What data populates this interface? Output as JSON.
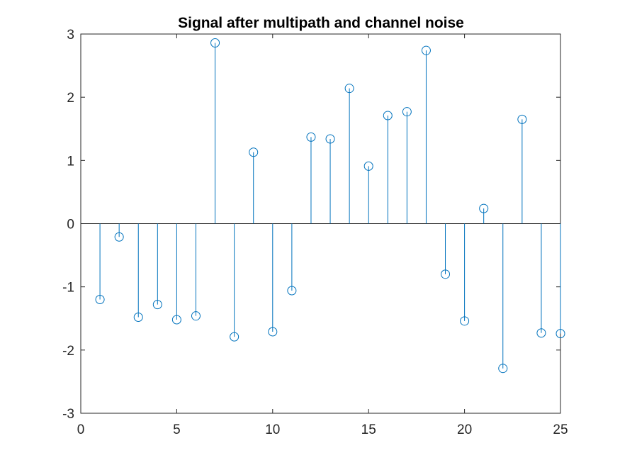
{
  "chart_data": {
    "type": "stem",
    "title": "Signal after multipath and channel noise",
    "xlabel": "",
    "ylabel": "",
    "xlim": [
      0,
      25
    ],
    "ylim": [
      -3,
      3
    ],
    "xticks": [
      0,
      5,
      10,
      15,
      20,
      25
    ],
    "yticks": [
      -3,
      -2,
      -1,
      0,
      1,
      2,
      3
    ],
    "xtick_labels": [
      "0",
      "5",
      "10",
      "15",
      "20",
      "25"
    ],
    "ytick_labels": [
      "-3",
      "-2",
      "-1",
      "0",
      "1",
      "2",
      "3"
    ],
    "grid": false,
    "baseline": 0,
    "series_color": "#0072BD",
    "axis_color": "#262626",
    "x": [
      1,
      2,
      3,
      4,
      5,
      6,
      7,
      8,
      9,
      10,
      11,
      12,
      13,
      14,
      15,
      16,
      17,
      18,
      19,
      20,
      21,
      22,
      23,
      24,
      25
    ],
    "y": [
      -1.2,
      -0.21,
      -1.48,
      -1.28,
      -1.52,
      -1.46,
      2.86,
      -1.79,
      1.13,
      -1.71,
      -1.06,
      1.37,
      1.34,
      2.14,
      0.91,
      1.71,
      1.77,
      2.74,
      -0.8,
      -1.54,
      0.24,
      -2.29,
      1.65,
      -1.73,
      -1.74
    ]
  }
}
